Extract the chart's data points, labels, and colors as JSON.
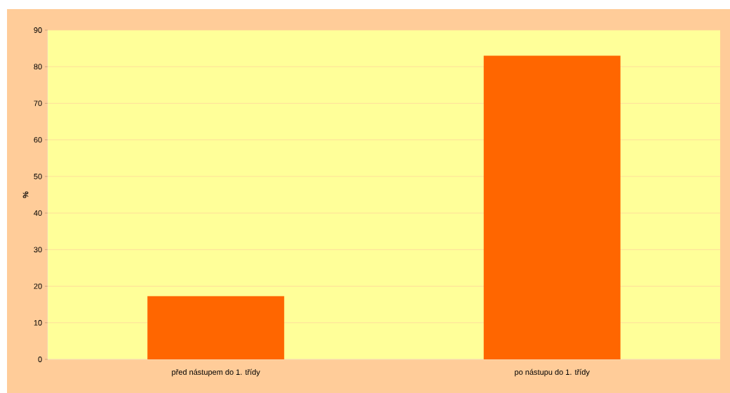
{
  "chart_data": {
    "type": "bar",
    "ylabel": "%",
    "categories": [
      "před nástupem do 1. třídy",
      "po nástupu do 1. třídy"
    ],
    "values": [
      17.3,
      83.0
    ],
    "color": "#ff6600",
    "ylim": [
      0,
      90
    ],
    "yticks": [
      0,
      10,
      20,
      30,
      40,
      50,
      60,
      70,
      80,
      90
    ],
    "grid": "y"
  }
}
